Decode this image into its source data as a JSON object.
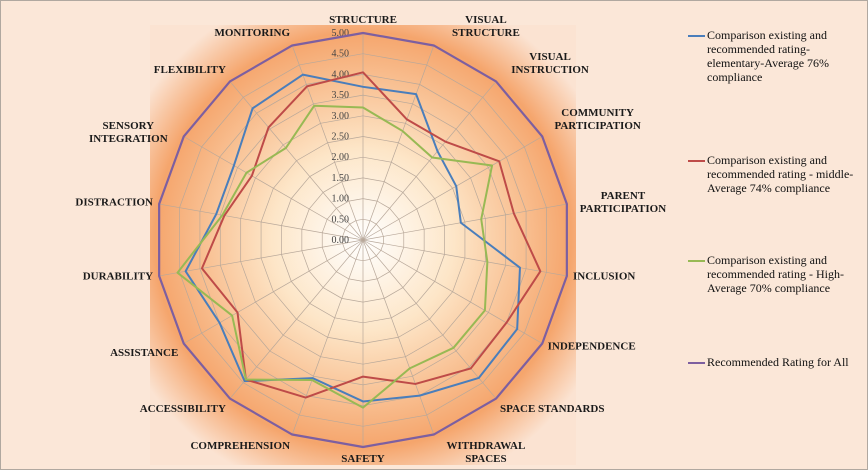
{
  "chart_data": {
    "type": "radar",
    "categories": [
      "STRUCTURE",
      "VISUAL STRUCTURE",
      "VISUAL INSTRUCTION",
      "COMMUNITY PARTICIPATION",
      "PARENT PARTICIPATION",
      "INCLUSION",
      "INDEPENDENCE",
      "SPACE STANDARDS",
      "WITHDRAWAL SPACES",
      "SAFETY",
      "COMPREHENSION",
      "ACCESSIBILITY",
      "ASSISTANCE",
      "DURABILITY",
      "DISTRACTION",
      "SENSORY INTEGRATION",
      "FLEXIBILITY",
      "MONITORING"
    ],
    "series": [
      {
        "name": "Comparison existing and recommended rating-elementary-Average 76% compliance",
        "color": "#4a7ebb",
        "values": [
          3.7,
          3.75,
          2.8,
          2.6,
          2.4,
          3.85,
          4.3,
          4.35,
          4.0,
          3.9,
          3.55,
          4.45,
          4.0,
          4.35,
          3.6,
          3.6,
          4.15,
          4.25
        ]
      },
      {
        "name": "Comparison existing and recommended rating - middle-Average 74% compliance",
        "color": "#be4b48",
        "values": [
          4.05,
          3.1,
          3.1,
          3.8,
          3.7,
          4.35,
          4.0,
          4.05,
          3.7,
          3.3,
          4.05,
          4.4,
          3.5,
          3.95,
          3.4,
          3.1,
          3.55,
          3.95
        ]
      },
      {
        "name": "Comparison existing and recommended rating - High-Average 70% compliance",
        "color": "#98b954",
        "values": [
          3.2,
          2.8,
          2.6,
          3.6,
          2.9,
          3.05,
          3.4,
          3.4,
          3.3,
          4.05,
          3.6,
          4.4,
          3.65,
          4.55,
          3.45,
          3.25,
          2.9,
          3.45
        ]
      },
      {
        "name": "Recommended Rating for All",
        "color": "#7d5fa0",
        "values": [
          5,
          5,
          5,
          5,
          5,
          5,
          5,
          5,
          5,
          5,
          5,
          5,
          5,
          5,
          5,
          5,
          5,
          5
        ]
      }
    ],
    "ylim": [
      0,
      5
    ],
    "yticks": [
      {
        "value": 0,
        "label": "0.00"
      },
      {
        "value": 0.5,
        "label": "0.50"
      },
      {
        "value": 1,
        "label": "1.00"
      },
      {
        "value": 1.5,
        "label": "1.50"
      },
      {
        "value": 2,
        "label": "2.00"
      },
      {
        "value": 2.5,
        "label": "2.50"
      },
      {
        "value": 3,
        "label": "3.00"
      },
      {
        "value": 3.5,
        "label": "3.50"
      },
      {
        "value": 4,
        "label": "4.00"
      },
      {
        "value": 4.5,
        "label": "4.50"
      },
      {
        "value": 5,
        "label": "5.00"
      }
    ],
    "grid": true,
    "legend": "right"
  }
}
